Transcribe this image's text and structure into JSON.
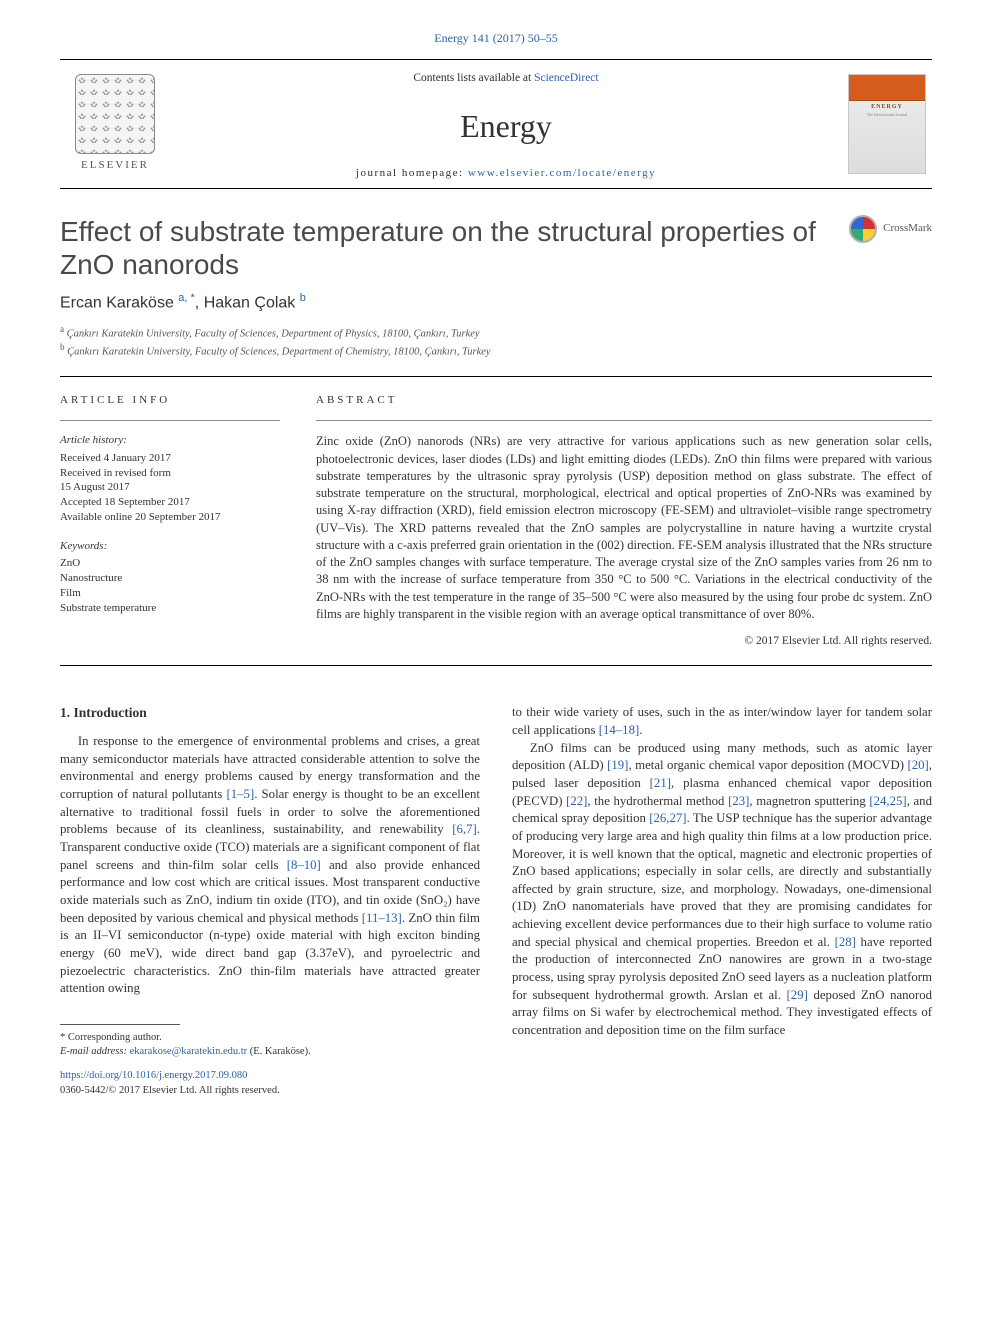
{
  "colors": {
    "link": "#2d5fa8",
    "text": "#333333",
    "rule": "#000000",
    "coverOrange": "#d65c1e"
  },
  "header": {
    "citation": "Energy 141 (2017) 50–55",
    "contentsPrefix": "Contents lists available at ",
    "contentsLink": "ScienceDirect",
    "journal": "Energy",
    "homepagePrefix": "journal homepage: ",
    "homepageLink": "www.elsevier.com/locate/energy",
    "elsevier": "ELSEVIER",
    "coverTitle": "ENERGY",
    "coverSub": "The International Journal"
  },
  "article": {
    "title": "Effect of substrate temperature on the structural properties of ZnO nanorods",
    "crossmark": "CrossMark",
    "authorsHtmlParts": [
      "Ercan Karaköse ",
      "a, *",
      ", Hakan Çolak ",
      "b"
    ],
    "affiliations": [
      {
        "sup": "a",
        "text": " Çankırı Karatekin University, Faculty of Sciences, Department of Physics, 18100, Çankırı, Turkey"
      },
      {
        "sup": "b",
        "text": " Çankırı Karatekin University, Faculty of Sciences, Department of Chemistry, 18100, Çankırı, Turkey"
      }
    ]
  },
  "info": {
    "label": "ARTICLE INFO",
    "historyHead": "Article history:",
    "history": [
      "Received 4 January 2017",
      "Received in revised form",
      "15 August 2017",
      "Accepted 18 September 2017",
      "Available online 20 September 2017"
    ],
    "keywordsHead": "Keywords:",
    "keywords": [
      "ZnO",
      "Nanostructure",
      "Film",
      "Substrate temperature"
    ]
  },
  "abstract": {
    "label": "ABSTRACT",
    "body": "Zinc oxide (ZnO) nanorods (NRs) are very attractive for various applications such as new generation solar cells, photoelectronic devices, laser diodes (LDs) and light emitting diodes (LEDs). ZnO thin films were prepared with various substrate temperatures by the ultrasonic spray pyrolysis (USP) deposition method on glass substrate. The effect of substrate temperature on the structural, morphological, electrical and optical properties of ZnO-NRs was examined by using X-ray diffraction (XRD), field emission electron microscopy (FE-SEM) and ultraviolet–visible range spectrometry (UV–Vis). The XRD patterns revealed that the ZnO samples are polycrystalline in nature having a wurtzite crystal structure with a c-axis preferred grain orientation in the (002) direction. FE-SEM analysis illustrated that the NRs structure of the ZnO samples changes with surface temperature. The average crystal size of the ZnO samples varies from 26 nm to 38 nm with the increase of surface temperature from 350 °C to 500 °C. Variations in the electrical conductivity of the ZnO-NRs with the test temperature in the range of 35–500 °C were also measured by the using four probe dc system. ZnO films are highly transparent in the visible region with an average optical transmittance of over 80%.",
    "copyright": "© 2017 Elsevier Ltd. All rights reserved."
  },
  "body": {
    "introHead": "1. Introduction",
    "p1a": "In response to the emergence of environmental problems and crises, a great many semiconductor materials have attracted considerable attention to solve the environmental and energy problems caused by energy transformation and the corruption of natural pollutants ",
    "p1r1": "[1–5]",
    "p1b": ". Solar energy is thought to be an excellent alternative to traditional fossil fuels in order to solve the aforementioned problems because of its cleanliness, sustainability, and renewability ",
    "p1r2": "[6,7]",
    "p1c": ". Transparent conductive oxide (TCO) materials are a significant component of flat panel screens and thin-film solar cells ",
    "p1r3": "[8–10]",
    "p1d": " and also provide enhanced performance and low cost which are critical issues. Most transparent conductive oxide materials such as ZnO, indium tin oxide (ITO), and tin oxide (SnO₂) have been deposited by various chemical and physical methods ",
    "p1r4": "[11–13]",
    "p1e": ". ZnO thin film is an II–VI semiconductor (n-type) oxide material with high exciton binding energy (60 meV), wide direct band gap (3.37eV), and pyroelectric and piezoelectric characteristics. ZnO thin-film materials have attracted greater attention owing ",
    "p2a": "to their wide variety of uses, such in the as inter/window layer for tandem solar cell applications ",
    "p2r1": "[14–18]",
    "p2b": ".",
    "p3a": "ZnO films can be produced using many methods, such as atomic layer deposition (ALD) ",
    "p3r1": "[19]",
    "p3b": ", metal organic chemical vapor deposition (MOCVD) ",
    "p3r2": "[20]",
    "p3c": ", pulsed laser deposition ",
    "p3r3": "[21]",
    "p3d": ", plasma enhanced chemical vapor deposition (PECVD) ",
    "p3r4": "[22]",
    "p3e": ", the hydrothermal method ",
    "p3r5": "[23]",
    "p3f": ", magnetron sputtering ",
    "p3r6": "[24,25]",
    "p3g": ", and chemical spray deposition ",
    "p3r7": "[26,27]",
    "p3h": ". The USP technique has the superior advantage of producing very large area and high quality thin films at a low production price. Moreover, it is well known that the optical, magnetic and electronic properties of ZnO based applications; especially in solar cells, are directly and substantially affected by grain structure, size, and morphology. Nowadays, one-dimensional (1D) ZnO nanomaterials have proved that they are promising candidates for achieving excellent device performances due to their high surface to volume ratio and special physical and chemical properties. Breedon et al. ",
    "p3r8": "[28]",
    "p3i": " have reported the production of interconnected ZnO nanowires are grown in a two-stage process, using spray pyrolysis deposited ZnO seed layers as a nucleation platform for subsequent hydrothermal growth. Arslan et al. ",
    "p3r9": "[29]",
    "p3j": " deposed ZnO nanorod array films on Si wafer by electrochemical method. They investigated effects of concentration and deposition time on the film surface"
  },
  "footer": {
    "corr": "* Corresponding author.",
    "emailLabel": "E-mail address: ",
    "email": "ekarakose@karatekin.edu.tr",
    "emailTail": " (E. Karaköse).",
    "doi": "https://doi.org/10.1016/j.energy.2017.09.080",
    "issn": "0360-5442/© 2017 Elsevier Ltd. All rights reserved."
  }
}
